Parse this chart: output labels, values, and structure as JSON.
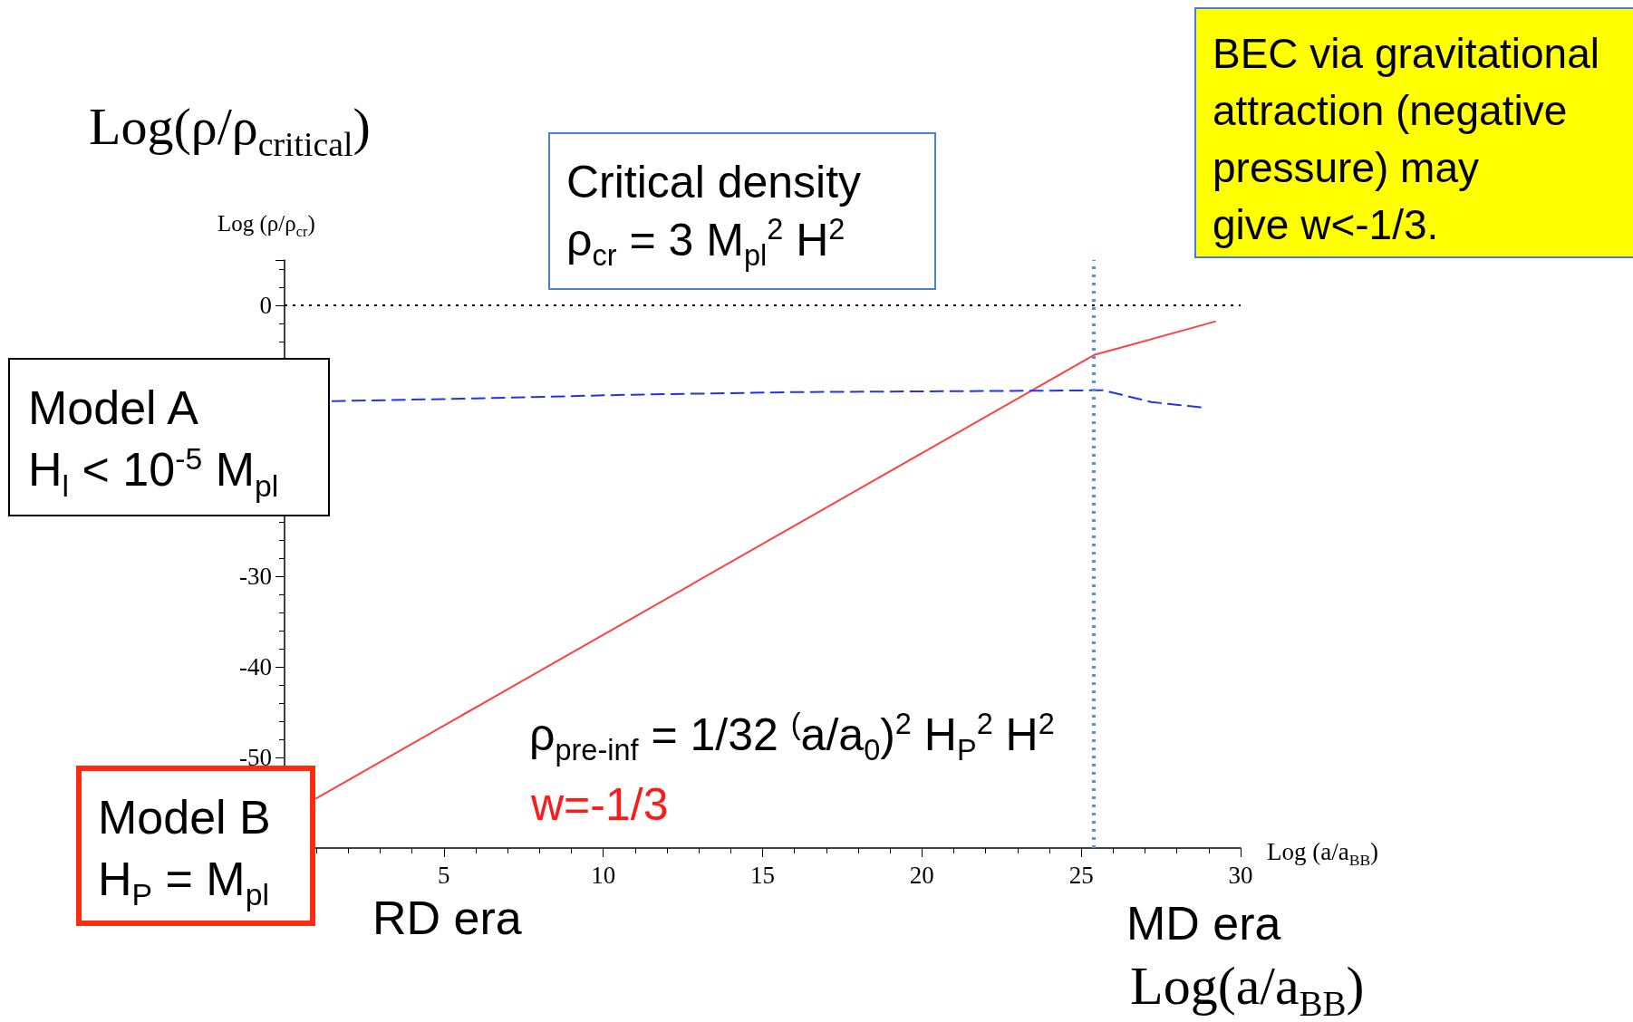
{
  "chart_data": {
    "type": "line",
    "xlabel": "Log (a/a$_{BB}$)",
    "ylabel": "Log (ρ/ρ$_{cr}$)",
    "series": [
      {
        "color": "#ff4040",
        "line_style": "solid",
        "x": [
          1,
          25.4,
          29.2
        ],
        "values": [
          -54.5,
          -5.5,
          -1.8
        ]
      },
      {
        "color": "#2233ee",
        "line_style": "dashed",
        "x": [
          1.5,
          6,
          10.7,
          16,
          21,
          25.7,
          27.2,
          28.8
        ],
        "values": [
          -10.6,
          -10.3,
          -9.9,
          -9.6,
          -9.5,
          -9.4,
          -10.7,
          -11.3
        ]
      }
    ],
    "xlim": [
      0,
      30
    ],
    "xticks": [
      5,
      10,
      15,
      20,
      25,
      30
    ],
    "ylim": [
      -60,
      5
    ],
    "yticks": [
      0,
      -30,
      -40,
      -50
    ],
    "ref_lines": [
      {
        "axis": "y",
        "value": 0,
        "label": null,
        "color": "#000000",
        "line_style": "dotted"
      },
      {
        "axis": "x",
        "value": 25.4,
        "label": null,
        "color": "#5b8fd0",
        "line_style": "dotted"
      }
    ],
    "marker": "none",
    "grid": false,
    "annotations": [
      "Log(ρ/ρ$_{critical}$)",
      "Critical density\nρ$_{cr}$ =  3 M$_{pl}$$^{2}$ H$^{2}$",
      "BEC via gravitational\nattraction (negative\npressure) may\ngive w<-1/3.",
      "Model A\nH$_{l}$ < 10$^{-5}$ M$_{pl}$",
      "Model B\nH$_{P}$ = M$_{pl}$",
      "ρ$_{pre-inf}$ = 1/32 $^{(}$a/a$_{0}$)$^{2}$ H$_{P}$$^{2}$ H$^{2}$",
      "w=-1/3",
      "RD era",
      "MD era",
      "Log(a/a$_{BB}$)"
    ]
  }
}
